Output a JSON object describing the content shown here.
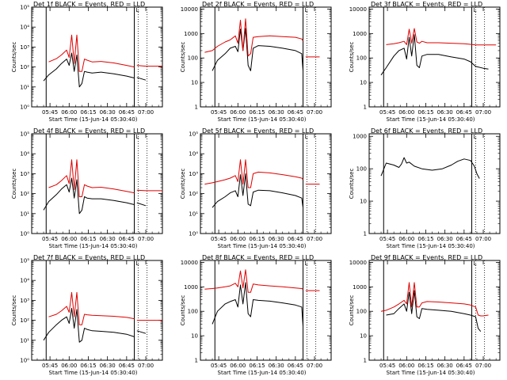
{
  "figure": {
    "colors": {
      "events": "#000000",
      "lld": "#e00000",
      "frame": "#000000",
      "background": "#ffffff"
    },
    "title_suffix": "BLACK = Events, RED = LLD",
    "x_label": "Start Time (15-Jun-14 05:30:40)",
    "y_label": "Counts/sec",
    "x_ticks": [
      "05:45",
      "06:00",
      "06:15",
      "06:30",
      "06:45",
      "07:00"
    ],
    "x_tick_minutes": [
      45,
      60,
      75,
      90,
      105,
      120
    ],
    "x_range_minutes": [
      30.67,
      133
    ],
    "marker_minutes": {
      "solid": [
        42,
        111
      ],
      "dotted": [
        114,
        121
      ]
    },
    "corner_mark": "L",
    "ranges": [
      {
        "min": 0,
        "max": 1,
        "label": "10⁰"
      },
      {
        "min": 1,
        "max": 2,
        "label": "10¹"
      },
      {
        "min": 2,
        "max": 3,
        "label": "10²"
      },
      {
        "min": 3,
        "max": 4,
        "label": "10³"
      },
      {
        "min": 4,
        "max": 5,
        "label": "10⁴"
      },
      {
        "min": 5,
        "max": 6,
        "label": "10⁵"
      }
    ]
  },
  "chart_data": [
    {
      "type": "line",
      "title": "Det 1f BLACK = Events, RED = LLD",
      "detector": "Det 1f",
      "y_scale": "log",
      "ylim": [
        1,
        100000
      ],
      "y_ticks": [
        [
          "10⁰",
          1
        ],
        [
          "10¹",
          10
        ],
        [
          "10²",
          100
        ],
        [
          "10³",
          1000
        ],
        [
          "10⁴",
          10000
        ],
        [
          "10⁵",
          100000
        ]
      ],
      "x_minutes": [
        36,
        40,
        44,
        50,
        54,
        58,
        60,
        62,
        64,
        66,
        68,
        70,
        72,
        74,
        78,
        85,
        95,
        105,
        111,
        111.5,
        113,
        120,
        130,
        133
      ],
      "series": [
        {
          "name": "Events",
          "color": "#000000",
          "values": [
            null,
            20,
            40,
            80,
            150,
            250,
            120,
            500,
            60,
            400,
            10,
            15,
            60,
            55,
            50,
            55,
            45,
            35,
            28,
            null,
            30,
            22,
            null,
            null
          ]
        },
        {
          "name": "LLD",
          "color": "#e00000",
          "values": [
            null,
            null,
            180,
            260,
            400,
            700,
            300,
            4000,
            150,
            4000,
            60,
            60,
            250,
            220,
            180,
            190,
            160,
            120,
            100,
            null,
            120,
            110,
            110,
            110
          ]
        }
      ]
    },
    {
      "type": "line",
      "title": "Det 2f BLACK = Events, RED = LLD",
      "detector": "Det 2f",
      "y_scale": "log",
      "ylim": [
        1,
        12000
      ],
      "y_ticks": [
        [
          "1",
          1
        ],
        [
          "10",
          10
        ],
        [
          "100",
          100
        ],
        [
          "1000",
          1000
        ],
        [
          "10000",
          10000
        ]
      ],
      "x_minutes": [
        34,
        40,
        44,
        50,
        54,
        58,
        60,
        62,
        64,
        66,
        68,
        70,
        72,
        76,
        85,
        95,
        105,
        110,
        111,
        111.5,
        113,
        120,
        124
      ],
      "series": [
        {
          "name": "Events",
          "color": "#000000",
          "values": [
            null,
            30,
            80,
            150,
            250,
            300,
            180,
            1500,
            200,
            1600,
            50,
            30,
            250,
            320,
            300,
            250,
            200,
            150,
            30,
            null,
            null,
            null,
            null
          ]
        },
        {
          "name": "LLD",
          "color": "#e00000",
          "values": [
            170,
            200,
            300,
            450,
            550,
            800,
            400,
            3500,
            200,
            4000,
            120,
            150,
            700,
            750,
            800,
            750,
            700,
            600,
            500,
            null,
            110,
            110,
            110
          ]
        }
      ]
    },
    {
      "type": "line",
      "title": "Det 3f BLACK = Events, RED = LLD",
      "detector": "Det 3f",
      "y_scale": "log",
      "ylim": [
        1,
        12000
      ],
      "y_ticks": [
        [
          "1",
          1
        ],
        [
          "10",
          10
        ],
        [
          "100",
          100
        ],
        [
          "1000",
          1000
        ],
        [
          "10000",
          10000
        ]
      ],
      "x_minutes": [
        40,
        44,
        50,
        54,
        58,
        60,
        62,
        64,
        66,
        68,
        70,
        72,
        76,
        85,
        95,
        105,
        110,
        114,
        120,
        124,
        130
      ],
      "series": [
        {
          "name": "Events",
          "color": "#000000",
          "values": [
            20,
            40,
            120,
            200,
            250,
            90,
            700,
            120,
            900,
            50,
            40,
            120,
            140,
            140,
            110,
            90,
            70,
            45,
            38,
            35,
            null
          ]
        },
        {
          "name": "LLD",
          "color": "#e00000",
          "values": [
            null,
            350,
            380,
            420,
            480,
            350,
            1500,
            400,
            1600,
            450,
            400,
            480,
            420,
            420,
            400,
            380,
            360,
            340,
            340,
            340,
            340
          ]
        }
      ]
    },
    {
      "type": "line",
      "title": "Det 4f BLACK = Events, RED = LLD",
      "detector": "Det 4f",
      "y_scale": "log",
      "ylim": [
        1,
        100000
      ],
      "y_ticks": [
        [
          "10⁰",
          1
        ],
        [
          "10¹",
          10
        ],
        [
          "10²",
          100
        ],
        [
          "10³",
          1000
        ],
        [
          "10⁴",
          10000
        ],
        [
          "10⁵",
          100000
        ]
      ],
      "x_minutes": [
        36,
        40,
        44,
        50,
        54,
        58,
        60,
        62,
        64,
        66,
        68,
        70,
        72,
        74,
        78,
        85,
        95,
        105,
        111,
        111.5,
        113,
        120,
        130,
        133
      ],
      "series": [
        {
          "name": "Events",
          "color": "#000000",
          "values": [
            null,
            15,
            40,
            90,
            170,
            280,
            120,
            600,
            60,
            500,
            10,
            15,
            70,
            60,
            55,
            55,
            45,
            35,
            28,
            null,
            35,
            25,
            null,
            null
          ]
        },
        {
          "name": "LLD",
          "color": "#e00000",
          "values": [
            null,
            null,
            200,
            280,
            450,
            800,
            320,
            5000,
            160,
            5000,
            70,
            70,
            280,
            240,
            200,
            210,
            170,
            130,
            110,
            null,
            150,
            140,
            140,
            140
          ]
        }
      ]
    },
    {
      "type": "line",
      "title": "Det 5f BLACK = Events, RED = LLD",
      "detector": "Det 5f",
      "y_scale": "log",
      "ylim": [
        1,
        100000
      ],
      "y_ticks": [
        [
          "10⁰",
          1
        ],
        [
          "10¹",
          10
        ],
        [
          "10²",
          100
        ],
        [
          "10³",
          1000
        ],
        [
          "10⁴",
          10000
        ],
        [
          "10⁵",
          100000
        ]
      ],
      "x_minutes": [
        34,
        40,
        44,
        50,
        54,
        58,
        60,
        62,
        64,
        66,
        68,
        70,
        72,
        76,
        85,
        95,
        105,
        110,
        111,
        111.5,
        113,
        120,
        124
      ],
      "series": [
        {
          "name": "Events",
          "color": "#000000",
          "values": [
            null,
            20,
            40,
            70,
            110,
            140,
            70,
            900,
            80,
            1000,
            30,
            25,
            120,
            150,
            140,
            110,
            80,
            60,
            20,
            null,
            null,
            null,
            null
          ]
        },
        {
          "name": "LLD",
          "color": "#e00000",
          "values": [
            300,
            350,
            400,
            500,
            600,
            800,
            400,
            5000,
            300,
            5000,
            200,
            200,
            1000,
            1200,
            1100,
            900,
            700,
            600,
            500,
            null,
            300,
            300,
            300
          ]
        }
      ]
    },
    {
      "type": "line",
      "title": "Det 6f BLACK = Events, RED = LLD",
      "detector": "Det 6f",
      "y_scale": "log",
      "ylim": [
        1,
        1200
      ],
      "y_ticks": [
        [
          "1",
          1
        ],
        [
          "10",
          10
        ],
        [
          "100",
          100
        ],
        [
          "1000",
          1000
        ]
      ],
      "x_minutes": [
        40,
        44,
        50,
        54,
        56,
        58,
        60,
        62,
        66,
        72,
        80,
        88,
        95,
        100,
        105,
        110,
        113,
        115,
        117
      ],
      "series": [
        {
          "name": "Events",
          "color": "#000000",
          "values": [
            60,
            150,
            130,
            110,
            140,
            220,
            150,
            160,
            120,
            100,
            90,
            100,
            130,
            170,
            200,
            180,
            120,
            70,
            50
          ]
        }
      ]
    },
    {
      "type": "line",
      "title": "Det 7f BLACK = Events, RED = LLD",
      "detector": "Det 7f",
      "y_scale": "log",
      "ylim": [
        1,
        100000
      ],
      "y_ticks": [
        [
          "10⁰",
          1
        ],
        [
          "10¹",
          10
        ],
        [
          "10²",
          100
        ],
        [
          "10³",
          1000
        ],
        [
          "10⁴",
          10000
        ],
        [
          "10⁵",
          100000
        ]
      ],
      "x_minutes": [
        36,
        40,
        44,
        50,
        54,
        58,
        60,
        62,
        64,
        66,
        68,
        70,
        72,
        74,
        78,
        85,
        95,
        105,
        111,
        111.5,
        113,
        120,
        130,
        133
      ],
      "series": [
        {
          "name": "Events",
          "color": "#000000",
          "values": [
            null,
            10,
            25,
            60,
            100,
            150,
            70,
            400,
            40,
            350,
            8,
            10,
            40,
            35,
            30,
            28,
            25,
            20,
            15,
            null,
            30,
            22,
            null,
            null
          ]
        },
        {
          "name": "LLD",
          "color": "#e00000",
          "values": [
            null,
            null,
            150,
            200,
            300,
            500,
            250,
            2500,
            150,
            2500,
            60,
            60,
            200,
            190,
            180,
            170,
            160,
            140,
            120,
            null,
            100,
            100,
            100,
            100
          ]
        }
      ]
    },
    {
      "type": "line",
      "title": "Det 8f BLACK = Events, RED = LLD",
      "detector": "Det 8f",
      "y_scale": "log",
      "ylim": [
        1,
        12000
      ],
      "y_ticks": [
        [
          "1",
          1
        ],
        [
          "10",
          10
        ],
        [
          "100",
          100
        ],
        [
          "1000",
          1000
        ],
        [
          "10000",
          10000
        ]
      ],
      "x_minutes": [
        34,
        40,
        44,
        50,
        54,
        58,
        60,
        62,
        64,
        66,
        68,
        70,
        72,
        76,
        85,
        95,
        105,
        110,
        111,
        111.5,
        113,
        120,
        124
      ],
      "series": [
        {
          "name": "Events",
          "color": "#000000",
          "values": [
            null,
            30,
            100,
            200,
            250,
            300,
            150,
            1200,
            200,
            1500,
            80,
            60,
            300,
            280,
            260,
            220,
            180,
            150,
            25,
            null,
            null,
            null,
            null
          ]
        },
        {
          "name": "LLD",
          "color": "#e00000",
          "values": [
            800,
            850,
            900,
            1000,
            1100,
            1400,
            1000,
            4500,
            900,
            5000,
            600,
            600,
            1300,
            1200,
            1100,
            1000,
            900,
            850,
            800,
            null,
            700,
            700,
            700
          ]
        }
      ]
    },
    {
      "type": "line",
      "title": "Det 9f BLACK = Events, RED = LLD",
      "detector": "Det 9f",
      "y_scale": "log",
      "ylim": [
        1,
        12000
      ],
      "y_ticks": [
        [
          "1",
          1
        ],
        [
          "10",
          10
        ],
        [
          "100",
          100
        ],
        [
          "1000",
          1000
        ],
        [
          "10000",
          10000
        ]
      ],
      "x_minutes": [
        40,
        44,
        50,
        54,
        58,
        60,
        62,
        64,
        66,
        68,
        70,
        72,
        76,
        85,
        95,
        105,
        110,
        114,
        116,
        118,
        120,
        124
      ],
      "series": [
        {
          "name": "Events",
          "color": "#000000",
          "values": [
            null,
            70,
            80,
            130,
            200,
            100,
            600,
            80,
            700,
            60,
            50,
            130,
            120,
            110,
            100,
            80,
            70,
            60,
            20,
            15,
            null,
            null
          ]
        },
        {
          "name": "LLD",
          "color": "#e00000",
          "values": [
            100,
            110,
            150,
            200,
            280,
            200,
            1500,
            150,
            1500,
            150,
            150,
            220,
            250,
            240,
            220,
            200,
            180,
            150,
            70,
            65,
            65,
            70
          ]
        }
      ]
    }
  ]
}
